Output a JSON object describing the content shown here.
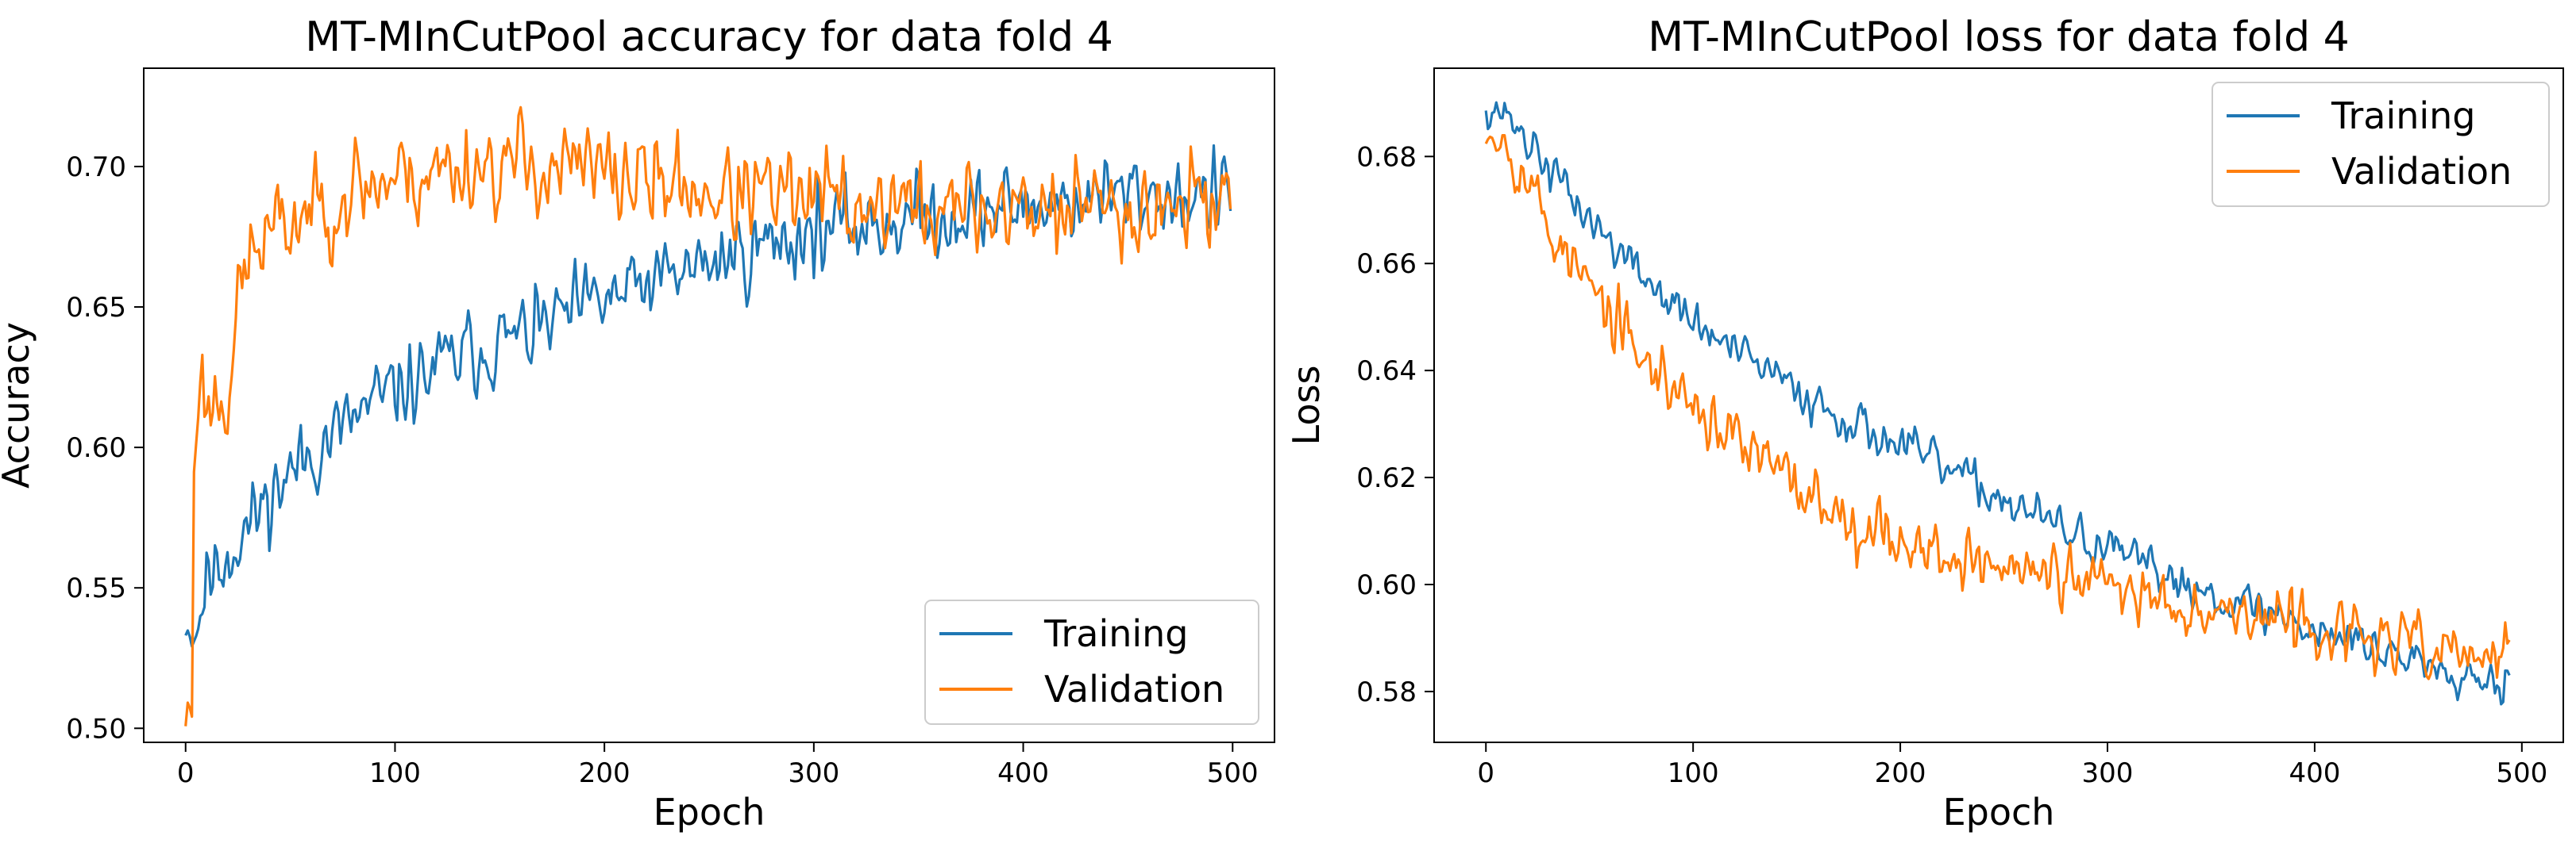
{
  "colors": {
    "training": "#1f77b4",
    "validation": "#ff7f0e",
    "axes": "#000000",
    "legend_border": "#cccccc"
  },
  "chart_data": [
    {
      "type": "line",
      "title": "MT-MInCutPool accuracy for data fold 4",
      "xlabel": "Epoch",
      "ylabel": "Accuracy",
      "xlim": [
        -20,
        520
      ],
      "ylim": [
        0.495,
        0.735
      ],
      "xticks": [
        0,
        100,
        200,
        300,
        400,
        500
      ],
      "xtick_labels": [
        "0",
        "100",
        "200",
        "300",
        "400",
        "500"
      ],
      "yticks": [
        0.5,
        0.55,
        0.6,
        0.65,
        0.7
      ],
      "ytick_labels": [
        "0.50",
        "0.55",
        "0.60",
        "0.65",
        "0.70"
      ],
      "legend_position": "lower-right",
      "x_range": [
        0,
        499
      ],
      "series": [
        {
          "name": "Training",
          "color_key": "training",
          "anchors": [
            [
              0,
              0.54
            ],
            [
              5,
              0.535
            ],
            [
              10,
              0.553
            ],
            [
              20,
              0.562
            ],
            [
              30,
              0.572
            ],
            [
              40,
              0.583
            ],
            [
              60,
              0.598
            ],
            [
              80,
              0.61
            ],
            [
              100,
              0.62
            ],
            [
              130,
              0.632
            ],
            [
              160,
              0.64
            ],
            [
              200,
              0.652
            ],
            [
              240,
              0.663
            ],
            [
              280,
              0.673
            ],
            [
              300,
              0.677
            ],
            [
              350,
              0.682
            ],
            [
              400,
              0.686
            ],
            [
              450,
              0.69
            ],
            [
              499,
              0.69
            ]
          ],
          "noise": 0.01,
          "seed": 11
        },
        {
          "name": "Validation",
          "color_key": "validation",
          "anchors": [
            [
              0,
              0.505
            ],
            [
              3,
              0.506
            ],
            [
              4,
              0.595
            ],
            [
              6,
              0.625
            ],
            [
              10,
              0.615
            ],
            [
              15,
              0.618
            ],
            [
              20,
              0.62
            ],
            [
              25,
              0.65
            ],
            [
              30,
              0.668
            ],
            [
              40,
              0.675
            ],
            [
              60,
              0.685
            ],
            [
              80,
              0.692
            ],
            [
              100,
              0.696
            ],
            [
              140,
              0.701
            ],
            [
              180,
              0.7
            ],
            [
              220,
              0.695
            ],
            [
              260,
              0.69
            ],
            [
              300,
              0.688
            ],
            [
              350,
              0.685
            ],
            [
              400,
              0.685
            ],
            [
              450,
              0.686
            ],
            [
              499,
              0.69
            ]
          ],
          "noise": 0.012,
          "seed": 23
        }
      ]
    },
    {
      "type": "line",
      "title": "MT-MInCutPool loss for data fold 4",
      "xlabel": "Epoch",
      "ylabel": "Loss",
      "xlim": [
        -25,
        520
      ],
      "ylim": [
        0.5705,
        0.6965
      ],
      "xticks": [
        0,
        100,
        200,
        300,
        400,
        500
      ],
      "xtick_labels": [
        "0",
        "100",
        "200",
        "300",
        "400",
        "500"
      ],
      "yticks": [
        0.58,
        0.6,
        0.62,
        0.64,
        0.66,
        0.68
      ],
      "ytick_labels": [
        "0.58",
        "0.60",
        "0.62",
        "0.64",
        "0.66",
        "0.68"
      ],
      "legend_position": "upper-right",
      "x_range": [
        0,
        494
      ],
      "series": [
        {
          "name": "Training",
          "color_key": "training",
          "anchors": [
            [
              0,
              0.69
            ],
            [
              10,
              0.688
            ],
            [
              20,
              0.683
            ],
            [
              40,
              0.673
            ],
            [
              60,
              0.664
            ],
            [
              80,
              0.656
            ],
            [
              100,
              0.649
            ],
            [
              130,
              0.641
            ],
            [
              160,
              0.634
            ],
            [
              200,
              0.626
            ],
            [
              240,
              0.618
            ],
            [
              280,
              0.61
            ],
            [
              320,
              0.603
            ],
            [
              360,
              0.597
            ],
            [
              400,
              0.592
            ],
            [
              440,
              0.587
            ],
            [
              470,
              0.584
            ],
            [
              494,
              0.582
            ]
          ],
          "noise": 0.0028,
          "seed": 37
        },
        {
          "name": "Validation",
          "color_key": "validation",
          "anchors": [
            [
              0,
              0.687
            ],
            [
              10,
              0.683
            ],
            [
              20,
              0.676
            ],
            [
              30,
              0.667
            ],
            [
              40,
              0.661
            ],
            [
              60,
              0.65
            ],
            [
              80,
              0.64
            ],
            [
              100,
              0.634
            ],
            [
              120,
              0.627
            ],
            [
              150,
              0.618
            ],
            [
              180,
              0.612
            ],
            [
              210,
              0.607
            ],
            [
              240,
              0.604
            ],
            [
              280,
              0.601
            ],
            [
              320,
              0.598
            ],
            [
              360,
              0.595
            ],
            [
              400,
              0.592
            ],
            [
              440,
              0.589
            ],
            [
              470,
              0.587
            ],
            [
              494,
              0.586
            ]
          ],
          "noise": 0.004,
          "seed": 53
        }
      ]
    }
  ]
}
